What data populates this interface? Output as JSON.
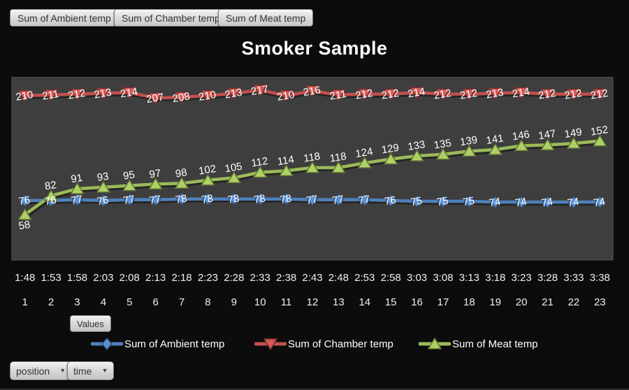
{
  "field_buttons": [
    {
      "label": "Sum of Ambient temp"
    },
    {
      "label": "Sum of Chamber temp"
    },
    {
      "label": "Sum of Meat temp"
    }
  ],
  "title": "Smoker Sample",
  "values_button_label": "Values",
  "legend": [
    {
      "label": "Sum of Ambient temp"
    },
    {
      "label": "Sum of Chamber temp"
    },
    {
      "label": "Sum of Meat temp"
    }
  ],
  "axis_field_buttons": [
    {
      "label": "position"
    },
    {
      "label": "time"
    }
  ],
  "chart_data": {
    "type": "line",
    "title": "Smoker Sample",
    "grid": false,
    "legend_position": "bottom",
    "plot_bg": "#3e3e3e",
    "plot_border": "#565656",
    "label_color": "#ffffff",
    "axis_text_color": "#efefef",
    "ylim": [
      0,
      234
    ],
    "x_time_labels": [
      "1:48",
      "1:53",
      "1:58",
      "2:03",
      "2:08",
      "2:13",
      "2:18",
      "2:23",
      "2:28",
      "2:33",
      "2:38",
      "2:43",
      "2:48",
      "2:53",
      "2:58",
      "3:03",
      "3:08",
      "3:13",
      "3:18",
      "3:23",
      "3:28",
      "3:33",
      "3:38"
    ],
    "x_position_labels": [
      "1",
      "2",
      "3",
      "4",
      "5",
      "6",
      "7",
      "8",
      "9",
      "10",
      "11",
      "12",
      "13",
      "14",
      "15",
      "16",
      "17",
      "18",
      "19",
      "20",
      "21",
      "22",
      "23"
    ],
    "series": [
      {
        "name": "Sum of Ambient temp",
        "color": "#4F81BD",
        "marker": "diamond",
        "label_position": "center",
        "values": [
          76,
          76,
          77,
          76,
          77,
          77,
          78,
          78,
          78,
          78,
          78,
          77,
          77,
          77,
          76,
          75,
          75,
          75,
          74,
          74,
          74,
          74,
          74
        ]
      },
      {
        "name": "Sum of Chamber temp",
        "color": "#C0504D",
        "marker": "triangle-down",
        "label_position": "center",
        "values": [
          210,
          211,
          212,
          213,
          214,
          207,
          208,
          210,
          213,
          217,
          210,
          216,
          211,
          212,
          212,
          214,
          212,
          212,
          213,
          214,
          212,
          212,
          212
        ]
      },
      {
        "name": "Sum of Meat temp",
        "color": "#9BBB59",
        "marker": "triangle-up",
        "label_position": "above",
        "values": [
          58,
          82,
          91,
          93,
          95,
          97,
          98,
          102,
          105,
          112,
          114,
          118,
          118,
          124,
          129,
          133,
          135,
          139,
          141,
          146,
          147,
          149,
          152
        ]
      }
    ]
  }
}
